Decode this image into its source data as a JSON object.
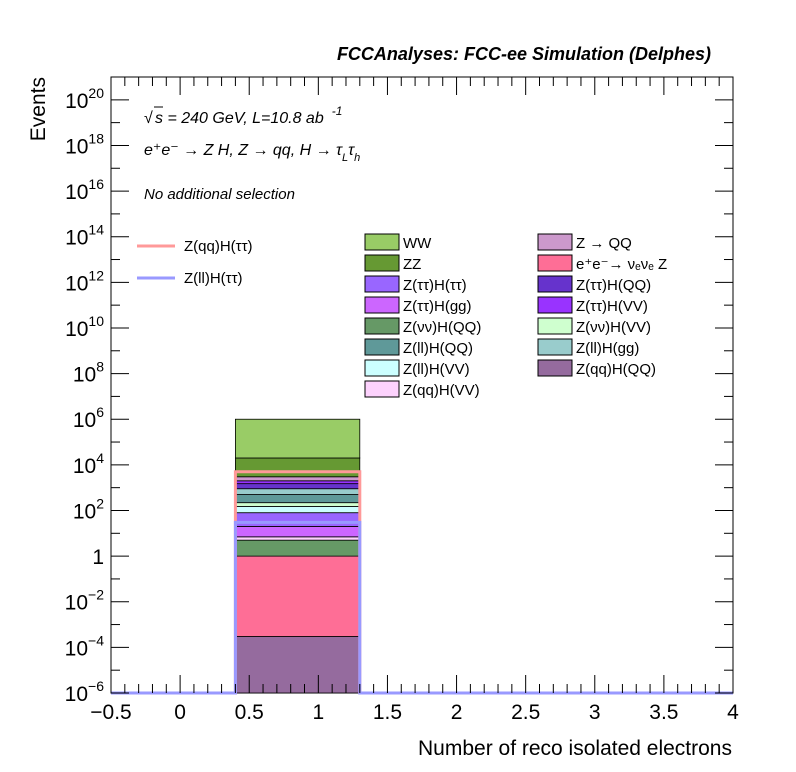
{
  "header": {
    "title": "FCCAnalyses: FCC-ee Simulation (Delphes)"
  },
  "annotations": {
    "energy_prefix": "s",
    "energy_text": " = 240 GeV, L=10.8 ab",
    "energy_sup": "-1",
    "process_text": "e⁺e⁻ → Z H, Z → qq, H → τ",
    "process_sub1": "L",
    "process_tau2": "τ",
    "process_sub2": "h",
    "selection": "No additional selection"
  },
  "chart_data": {
    "type": "bar",
    "stacked": true,
    "log_y": true,
    "xlabel": "Number of reco isolated electrons",
    "ylabel": "Events",
    "xlim": [
      -0.5,
      4
    ],
    "ylim": [
      1e-06,
      1e+21
    ],
    "grid": false,
    "x_ticks": [
      "−0.5",
      "0",
      "0.5",
      "1",
      "1.5",
      "2",
      "2.5",
      "3",
      "3.5",
      "4"
    ],
    "y_ticks": [
      {
        "base": "10",
        "exp": "−6",
        "value": 1e-06
      },
      {
        "base": "10",
        "exp": "−4",
        "value": 0.0001
      },
      {
        "base": "10",
        "exp": "−2",
        "value": 0.01
      },
      {
        "base": "1",
        "exp": "",
        "value": 1
      },
      {
        "base": "10",
        "exp": "2",
        "value": 100.0
      },
      {
        "base": "10",
        "exp": "4",
        "value": 10000.0
      },
      {
        "base": "10",
        "exp": "6",
        "value": 1000000.0
      },
      {
        "base": "10",
        "exp": "8",
        "value": 100000000.0
      },
      {
        "base": "10",
        "exp": "10",
        "value": 10000000000.0
      },
      {
        "base": "10",
        "exp": "12",
        "value": 1000000000000.0
      },
      {
        "base": "10",
        "exp": "14",
        "value": 100000000000000.0
      },
      {
        "base": "10",
        "exp": "16",
        "value": 1e+16
      },
      {
        "base": "10",
        "exp": "18",
        "value": 1e+18
      },
      {
        "base": "10",
        "exp": "20",
        "value": 1e+20
      }
    ],
    "bin": [
      0.4,
      1.3
    ],
    "stack": [
      {
        "name": "Z(qq)H(QQ)",
        "color": "#956b9e",
        "lo": 1e-06,
        "hi": 0.0003
      },
      {
        "name": "e⁺e⁻→ νₑνₑ Z",
        "color": "#fe6e96",
        "lo": 0.0003,
        "hi": 1.0
      },
      {
        "name": "Z(νν)H(QQ)",
        "color": "#669966",
        "lo": 1.0,
        "hi": 5.0
      },
      {
        "name": "Z(qq)H(VV)",
        "color": "#fdd2fd",
        "lo": 5.0,
        "hi": 7.0
      },
      {
        "name": "Z(ττ)H(gg)",
        "color": "#cc66ff",
        "lo": 7.0,
        "hi": 20.0
      },
      {
        "name": "Z(ττ)H(ττ)",
        "color": "#9966ff",
        "lo": 20.0,
        "hi": 80.0
      },
      {
        "name": "Z(ll)H(VV)",
        "color": "#ccffff",
        "lo": 80.0,
        "hi": 150.0
      },
      {
        "name": "Z(νν)H(VV)",
        "color": "#cfffcf",
        "lo": 150.0,
        "hi": 220.0
      },
      {
        "name": "Z(ll)H(QQ)",
        "color": "#5f9999",
        "lo": 220.0,
        "hi": 500.0
      },
      {
        "name": "Z(ll)H(gg)",
        "color": "#99cccc",
        "lo": 500.0,
        "hi": 900.0
      },
      {
        "name": "Z(ττ)H(QQ)",
        "color": "#6633cc",
        "lo": 900.0,
        "hi": 1500.0
      },
      {
        "name": "Z(ττ)H(VV)",
        "color": "#9933ff",
        "lo": 1500.0,
        "hi": 2000.0
      },
      {
        "name": "Z → QQ",
        "color": "#cc99cc",
        "lo": 2000.0,
        "hi": 3000.0
      },
      {
        "name": "ZZ",
        "color": "#669933",
        "lo": 3000.0,
        "hi": 20000.0
      },
      {
        "name": "WW",
        "color": "#99cc66",
        "lo": 20000.0,
        "hi": 1000000.0
      }
    ],
    "signals": [
      {
        "name": "Z(qq)H(ττ)",
        "color": "#ff9999",
        "value": 5000
      },
      {
        "name": "Z(ll)H(ττ)",
        "color": "#9999ff",
        "value": 30
      }
    ],
    "legend": {
      "placement": "top-right",
      "col1": [
        {
          "name": "WW",
          "color": "#99cc66"
        },
        {
          "name": "ZZ",
          "color": "#669933"
        },
        {
          "name": "Z(ττ)H(ττ)",
          "color": "#9966ff"
        },
        {
          "name": "Z(ττ)H(gg)",
          "color": "#cc66ff"
        },
        {
          "name": "Z(νν)H(QQ)",
          "color": "#669966"
        },
        {
          "name": "Z(ll)H(QQ)",
          "color": "#5f9999"
        },
        {
          "name": "Z(ll)H(VV)",
          "color": "#ccffff"
        },
        {
          "name": "Z(qq)H(VV)",
          "color": "#fdd2fd"
        }
      ],
      "col2": [
        {
          "name": "Z → QQ",
          "color": "#cc99cc"
        },
        {
          "name": "e⁺e⁻→ νₑνₑ Z",
          "color": "#fe6e96"
        },
        {
          "name": "Z(ττ)H(QQ)",
          "color": "#6633cc"
        },
        {
          "name": "Z(ττ)H(VV)",
          "color": "#9933ff"
        },
        {
          "name": "Z(νν)H(VV)",
          "color": "#cfffcf"
        },
        {
          "name": "Z(ll)H(gg)",
          "color": "#99cccc"
        },
        {
          "name": "Z(qq)H(QQ)",
          "color": "#956b9e"
        }
      ],
      "signals": [
        {
          "name": "Z(qq)H(ττ)",
          "color": "#ff9999"
        },
        {
          "name": "Z(ll)H(ττ)",
          "color": "#9999ff"
        }
      ]
    }
  }
}
